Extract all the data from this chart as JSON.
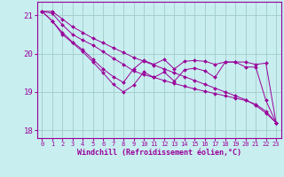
{
  "xlabel": "Windchill (Refroidissement éolien,°C)",
  "bg_color": "#c8eef0",
  "line_color": "#990099",
  "grid_color": "#a0ccc8",
  "ylim": [
    17.8,
    21.35
  ],
  "xlim": [
    -0.5,
    23.5
  ],
  "yticks": [
    18,
    19,
    20,
    21
  ],
  "xticks": [
    0,
    1,
    2,
    3,
    4,
    5,
    6,
    7,
    8,
    9,
    10,
    11,
    12,
    13,
    14,
    15,
    16,
    17,
    18,
    19,
    20,
    21,
    22,
    23
  ],
  "series": [
    [
      21.1,
      21.1,
      20.9,
      20.7,
      20.55,
      20.4,
      20.28,
      20.15,
      20.03,
      19.9,
      19.8,
      19.7,
      19.6,
      19.5,
      19.4,
      19.3,
      19.2,
      19.1,
      19.0,
      18.9,
      18.8,
      18.65,
      18.45,
      18.2
    ],
    [
      21.1,
      21.05,
      20.75,
      20.5,
      20.35,
      20.22,
      20.05,
      19.88,
      19.72,
      19.55,
      19.45,
      19.38,
      19.3,
      19.22,
      19.15,
      19.08,
      19.02,
      18.96,
      18.9,
      18.84,
      18.78,
      18.68,
      18.5,
      18.2
    ],
    [
      21.1,
      20.85,
      20.55,
      20.3,
      20.1,
      19.85,
      19.6,
      19.4,
      19.25,
      19.6,
      19.82,
      19.72,
      19.85,
      19.6,
      19.8,
      19.82,
      19.8,
      19.72,
      19.78,
      19.78,
      19.78,
      19.72,
      19.75,
      18.2
    ],
    [
      21.1,
      20.85,
      20.5,
      20.28,
      20.05,
      19.78,
      19.5,
      19.2,
      19.0,
      19.18,
      19.52,
      19.38,
      19.52,
      19.28,
      19.58,
      19.62,
      19.55,
      19.38,
      19.78,
      19.78,
      19.65,
      19.65,
      18.78,
      18.2
    ]
  ]
}
